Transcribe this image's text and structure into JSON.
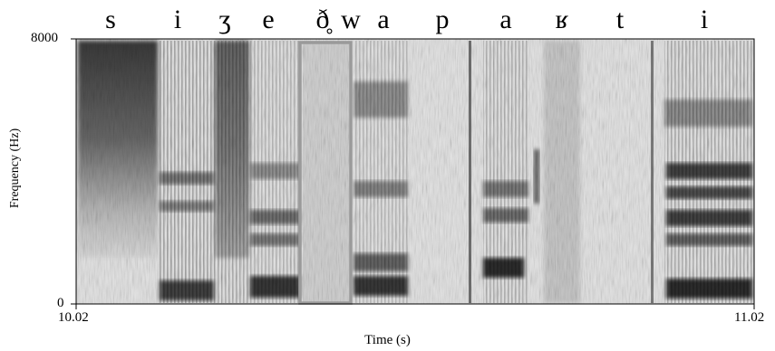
{
  "phones": [
    "s",
    "i",
    "ʒ",
    "e",
    "ð̥",
    "w",
    "a",
    "p",
    "a",
    "ʁ",
    "t",
    "i"
  ],
  "y_axis": {
    "label": "Frequency (Hz)",
    "max_label": "8000",
    "min_label": "0"
  },
  "x_axis": {
    "label": "Time (s)",
    "start_label": "10.02",
    "end_label": "11.02"
  },
  "highlight_color": "#9a9a9a"
}
